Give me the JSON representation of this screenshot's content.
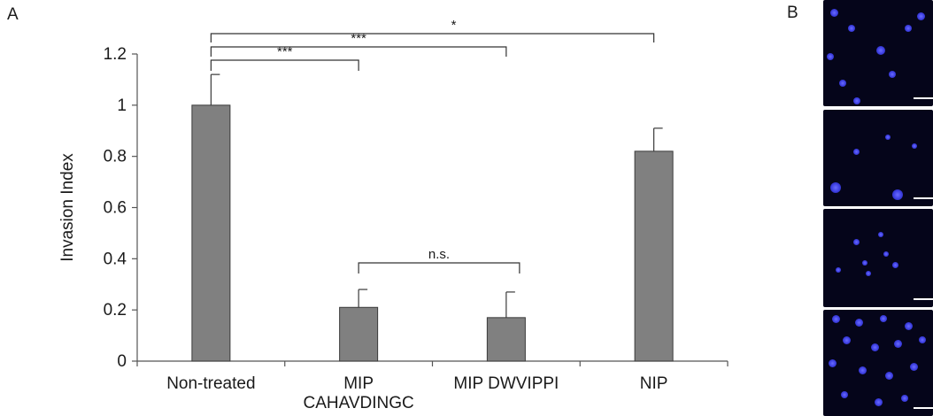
{
  "panel_labels": {
    "a": "A",
    "b": "B"
  },
  "chart_data": {
    "type": "bar",
    "categories": [
      "Non-treated",
      "MIP\nCAHAVDINGC",
      "MIP DWVIPPI",
      "NIP"
    ],
    "values": [
      1.0,
      0.21,
      0.17,
      0.82
    ],
    "errors": [
      0.12,
      0.07,
      0.1,
      0.09
    ],
    "ylabel": "Invasion Index",
    "xlabel": "",
    "ylim": [
      0,
      1.2
    ],
    "yticks": [
      0,
      0.2,
      0.4,
      0.6,
      0.8,
      1,
      1.2
    ],
    "bar_color": "#808080",
    "grid": false,
    "significance": [
      {
        "from": 0,
        "to": 3,
        "label": "*"
      },
      {
        "from": 0,
        "to": 2,
        "label": "***"
      },
      {
        "from": 0,
        "to": 1,
        "label": "***"
      },
      {
        "from": 1,
        "to": 2,
        "label": "n.s."
      }
    ]
  },
  "micrographs": {
    "count": 4,
    "stain_color": "#3c3ee0",
    "background": "#05051a",
    "scale_bar_color": "#ffffff"
  }
}
